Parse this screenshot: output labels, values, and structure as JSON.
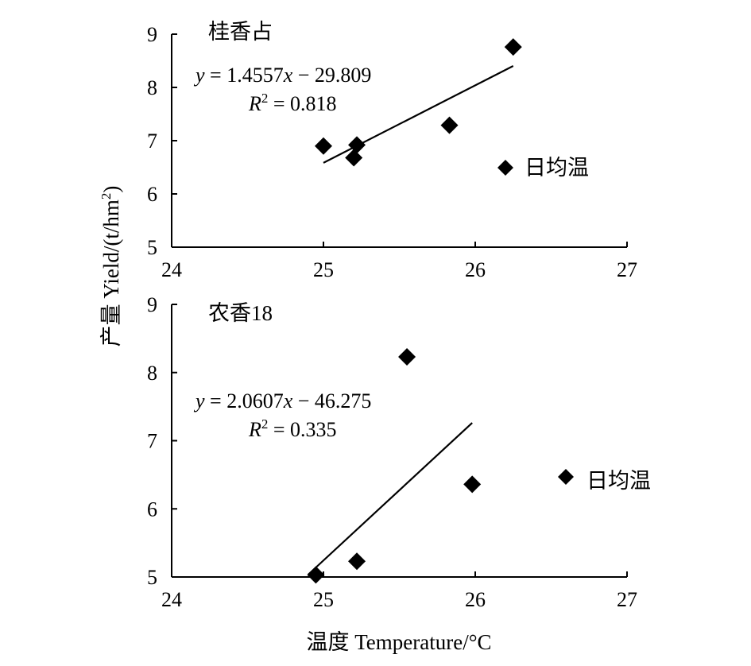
{
  "chart_data": {
    "type": "scatter",
    "shared_ylabel_parts": {
      "prefix": "产量 Yield/(t/hm",
      "superscript": "2",
      "suffix": ")"
    },
    "shared_xlabel": "温度 Temperature/°C",
    "panels": [
      {
        "title": "桂香占",
        "xlim": [
          24,
          27
        ],
        "ylim": [
          5,
          9
        ],
        "xticks": [
          "24",
          "25",
          "26",
          "27"
        ],
        "yticks": [
          "5",
          "6",
          "7",
          "8",
          "9"
        ],
        "series": [
          {
            "name": "日均温",
            "points": [
              {
                "x": 25.0,
                "y": 6.9
              },
              {
                "x": 25.2,
                "y": 6.68
              },
              {
                "x": 25.22,
                "y": 6.92
              },
              {
                "x": 25.83,
                "y": 7.29
              },
              {
                "x": 26.25,
                "y": 8.76
              }
            ]
          }
        ],
        "fit": {
          "slope": 1.4557,
          "intercept": -29.809,
          "x_range": [
            25.0,
            26.25
          ]
        },
        "equation_parts": {
          "y": "y",
          "rhs": " = 1.4557",
          "x": "x",
          "tail": " − 29.809"
        },
        "r2_parts": {
          "R": "R",
          "sup": "2",
          "rhs": " = 0.818"
        }
      },
      {
        "title": "农香18",
        "xlim": [
          24,
          27
        ],
        "ylim": [
          5,
          9
        ],
        "xticks": [
          "24",
          "25",
          "26",
          "27"
        ],
        "yticks": [
          "5",
          "6",
          "7",
          "8",
          "9"
        ],
        "series": [
          {
            "name": "日均温",
            "points": [
              {
                "x": 24.95,
                "y": 5.03
              },
              {
                "x": 25.22,
                "y": 5.23
              },
              {
                "x": 25.55,
                "y": 8.23
              },
              {
                "x": 25.98,
                "y": 6.36
              }
            ]
          }
        ],
        "fit": {
          "slope": 2.0607,
          "intercept": -46.275,
          "x_range": [
            24.9,
            25.98
          ]
        },
        "equation_parts": {
          "y": "y",
          "rhs": " = 2.0607",
          "x": "x",
          "tail": " − 46.275"
        },
        "r2_parts": {
          "R": "R",
          "sup": "2",
          "rhs": " = 0.335"
        }
      }
    ]
  }
}
